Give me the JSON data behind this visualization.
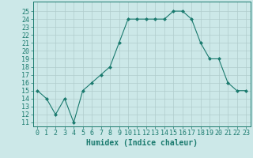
{
  "x": [
    0,
    1,
    2,
    3,
    4,
    5,
    6,
    7,
    8,
    9,
    10,
    11,
    12,
    13,
    14,
    15,
    16,
    17,
    18,
    19,
    20,
    21,
    22,
    23
  ],
  "y": [
    15,
    14,
    12,
    14,
    11,
    15,
    16,
    17,
    18,
    21,
    24,
    24,
    24,
    24,
    24,
    25,
    25,
    24,
    21,
    19,
    19,
    16,
    15,
    15
  ],
  "line_color": "#1a7a6e",
  "marker": "D",
  "marker_size": 2.0,
  "bg_color": "#cce8e8",
  "grid_color": "#b0cccc",
  "xlabel": "Humidex (Indice chaleur)",
  "ylim": [
    10.5,
    26.2
  ],
  "xlim": [
    -0.5,
    23.5
  ],
  "yticks": [
    11,
    12,
    13,
    14,
    15,
    16,
    17,
    18,
    19,
    20,
    21,
    22,
    23,
    24,
    25
  ],
  "xticks": [
    0,
    1,
    2,
    3,
    4,
    5,
    6,
    7,
    8,
    9,
    10,
    11,
    12,
    13,
    14,
    15,
    16,
    17,
    18,
    19,
    20,
    21,
    22,
    23
  ],
  "tick_color": "#1a7a6e",
  "axis_color": "#1a7a6e",
  "xlabel_fontsize": 7,
  "tick_fontsize": 6
}
